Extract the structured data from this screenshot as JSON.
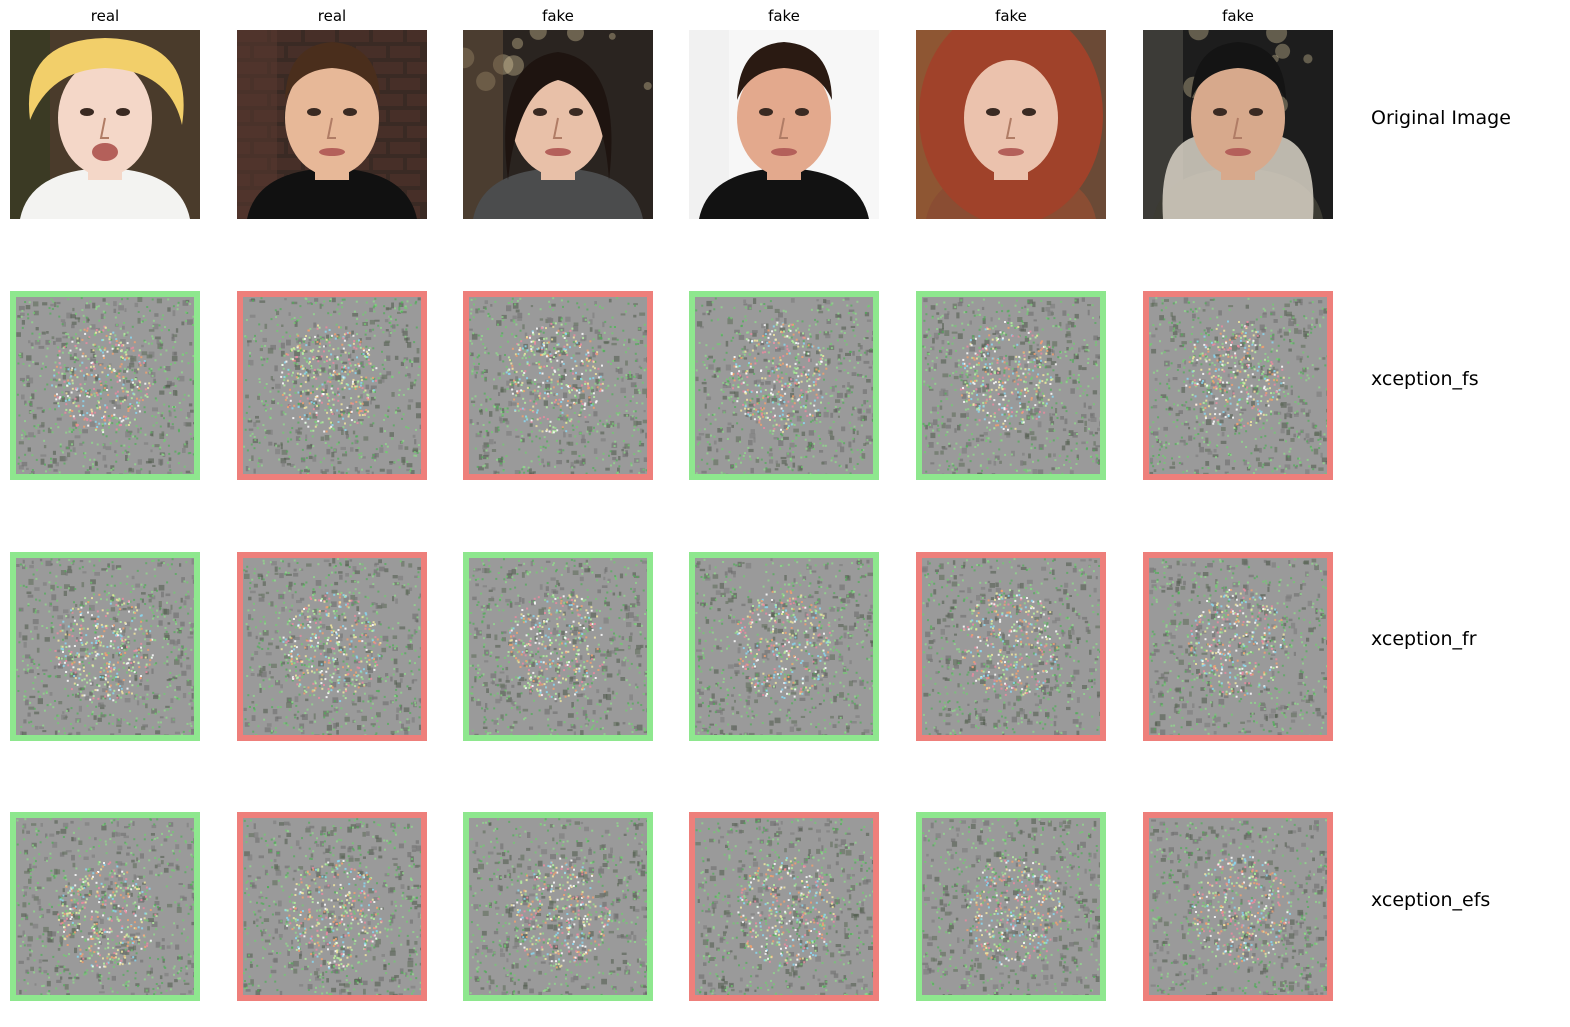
{
  "columns": [
    {
      "label": "real"
    },
    {
      "label": "real"
    },
    {
      "label": "fake"
    },
    {
      "label": "fake"
    },
    {
      "label": "fake"
    },
    {
      "label": "fake"
    }
  ],
  "colors": {
    "correct": "#8ee78e",
    "incorrect": "#ee7f7b",
    "map_base": "#9a9a9a"
  },
  "rows": [
    {
      "label": "Original Image",
      "kind": "original",
      "subjects": [
        "toddler-blond-face",
        "man-brown-hair-face",
        "woman-dark-hair-face",
        "man-black-jacket-face",
        "woman-knit-hood-face",
        "man-parka-night-face"
      ]
    },
    {
      "label": "xception_fs",
      "kind": "saliency",
      "outcomes": [
        "correct",
        "incorrect",
        "incorrect",
        "correct",
        "correct",
        "incorrect"
      ]
    },
    {
      "label": "xception_fr",
      "kind": "saliency",
      "outcomes": [
        "correct",
        "incorrect",
        "correct",
        "correct",
        "incorrect",
        "incorrect"
      ]
    },
    {
      "label": "xception_efs",
      "kind": "saliency",
      "outcomes": [
        "correct",
        "incorrect",
        "correct",
        "incorrect",
        "correct",
        "incorrect"
      ]
    }
  ]
}
